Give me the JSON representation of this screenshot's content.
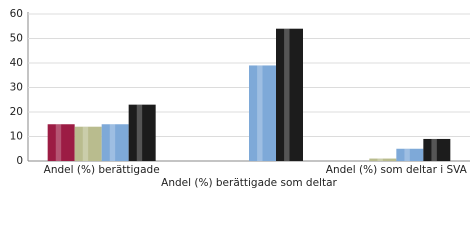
{
  "chart_data": {
    "type": "bar",
    "categories": [
      "Andel (%) berättigade",
      "Andel (%) berättigade som deltar",
      "Andel (%) som deltar i SVA"
    ],
    "series": [
      {
        "color": "#9c1c44",
        "values": [
          15,
          null,
          null
        ]
      },
      {
        "color": "#b9bc8e",
        "values": [
          14,
          null,
          1
        ]
      },
      {
        "color": "#7ea9d8",
        "values": [
          15,
          39,
          5
        ]
      },
      {
        "color": "#1c1c1c",
        "values": [
          23,
          54,
          9
        ]
      }
    ],
    "ylim": [
      0,
      60
    ],
    "yticks": [
      0,
      10,
      20,
      30,
      40,
      50,
      60
    ],
    "grid": true
  }
}
